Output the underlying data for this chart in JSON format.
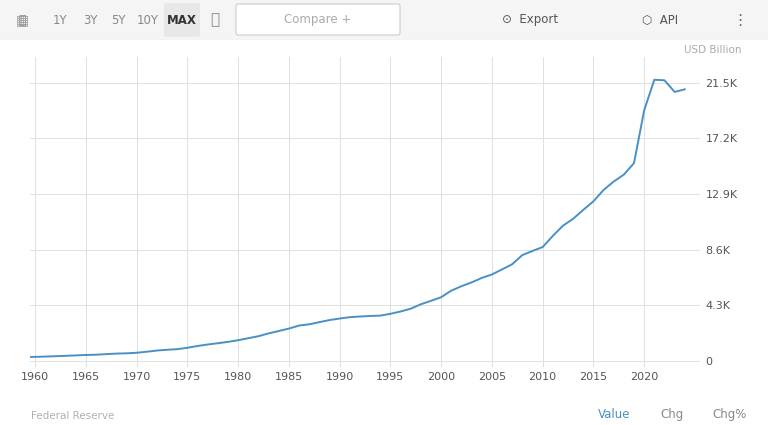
{
  "ylabel_right": "USD Billion",
  "source": "Federal Reserve",
  "line_color": "#4a90c4",
  "background_color": "#ffffff",
  "plot_bg_color": "#ffffff",
  "grid_color": "#e0e0e0",
  "yticks": [
    0,
    4300,
    8600,
    12900,
    17200,
    21500
  ],
  "ytick_labels": [
    "0",
    "4.3K",
    "8.6K",
    "12.9K",
    "17.2K",
    "21.5K"
  ],
  "xlim": [
    1959.5,
    2025.5
  ],
  "ylim": [
    -500,
    23500
  ],
  "xticks": [
    1960,
    1965,
    1970,
    1975,
    1980,
    1985,
    1990,
    1995,
    2000,
    2005,
    2010,
    2015,
    2020
  ],
  "toolbar_active": "MAX",
  "footer_left": "Federal Reserve",
  "footer_right_items": [
    "Value",
    "Chg",
    "Chg%"
  ],
  "footer_value_color": "#4a90c4",
  "data_x": [
    1959,
    1960,
    1961,
    1962,
    1963,
    1964,
    1965,
    1966,
    1967,
    1968,
    1969,
    1970,
    1971,
    1972,
    1973,
    1974,
    1975,
    1976,
    1977,
    1978,
    1979,
    1980,
    1981,
    1982,
    1983,
    1984,
    1985,
    1986,
    1987,
    1988,
    1989,
    1990,
    1991,
    1992,
    1993,
    1994,
    1995,
    1996,
    1997,
    1998,
    1999,
    2000,
    2001,
    2002,
    2003,
    2004,
    2005,
    2006,
    2007,
    2008,
    2009,
    2010,
    2011,
    2012,
    2013,
    2014,
    2015,
    2016,
    2017,
    2018,
    2019,
    2020,
    2021,
    2022,
    2023,
    2024
  ],
  "data_y": [
    300,
    312,
    335,
    363,
    393,
    425,
    459,
    480,
    524,
    566,
    587,
    628,
    710,
    802,
    861,
    908,
    1016,
    1152,
    1270,
    1366,
    1473,
    1600,
    1756,
    1910,
    2127,
    2311,
    2497,
    2733,
    2832,
    2995,
    3159,
    3277,
    3380,
    3433,
    3476,
    3502,
    3641,
    3820,
    4037,
    4380,
    4645,
    4925,
    5432,
    5776,
    6070,
    6415,
    6682,
    7077,
    7477,
    8183,
    8502,
    8803,
    9665,
    10453,
    10989,
    11677,
    12342,
    13218,
    13870,
    14405,
    15296,
    19374,
    21740,
    21700,
    20800,
    21000
  ]
}
